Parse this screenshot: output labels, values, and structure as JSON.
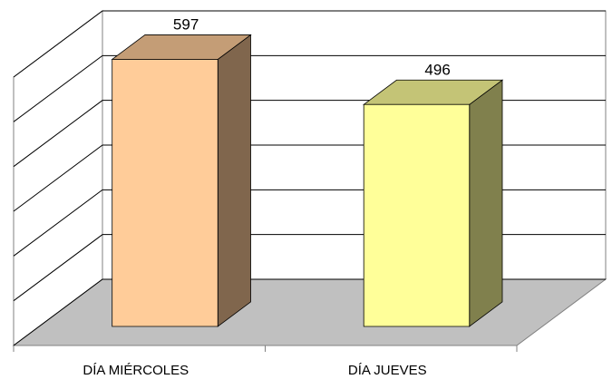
{
  "chart_data": {
    "type": "bar3d",
    "categories": [
      "DÍA MIÉRCOLES",
      "DÍA JUEVES"
    ],
    "values": [
      597,
      496
    ],
    "colors": [
      "#ffcc99",
      "#ffff99"
    ],
    "ylim": [
      0,
      600
    ],
    "yticks": [
      0,
      100,
      200,
      300,
      400,
      500,
      600
    ],
    "grid": true
  }
}
